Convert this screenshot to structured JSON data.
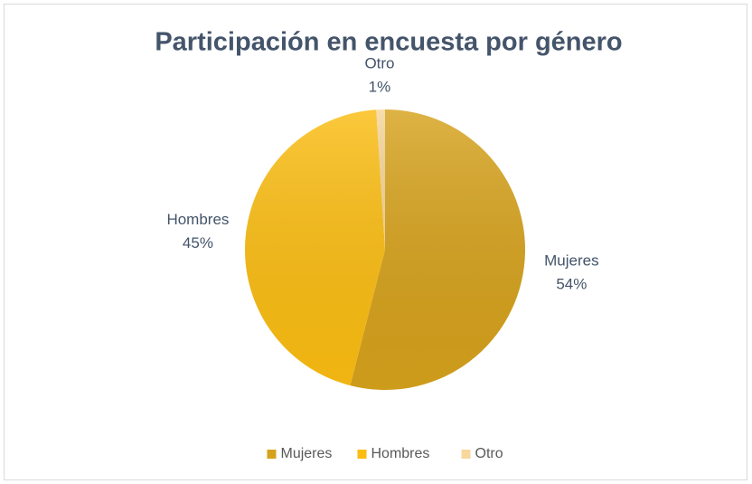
{
  "chart_data": {
    "type": "pie",
    "title": "Participación en encuesta por género",
    "categories": [
      "Mujeres",
      "Hombres",
      "Otro"
    ],
    "values": [
      54,
      45,
      1
    ],
    "value_labels": [
      "54%",
      "45%",
      "1%"
    ],
    "colors": [
      "#d6a21c",
      "#fbbd12",
      "#f7d79c"
    ],
    "legend": "bottom"
  }
}
